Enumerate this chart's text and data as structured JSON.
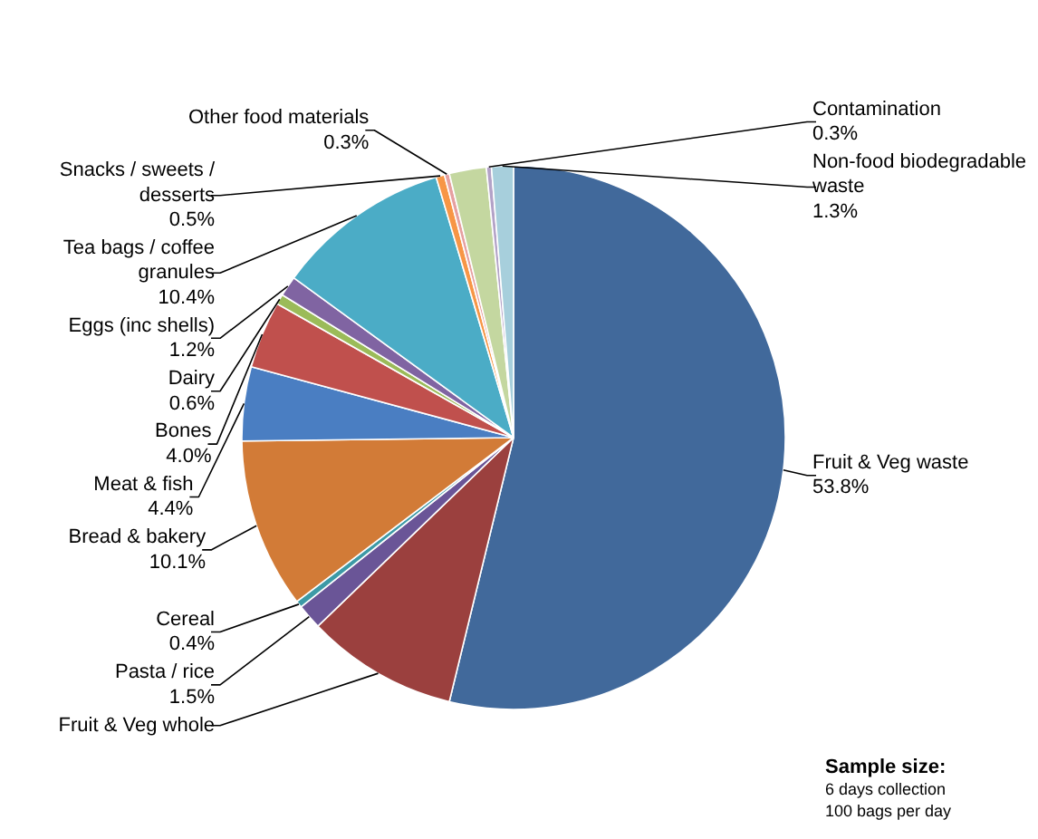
{
  "chart_data": {
    "type": "pie",
    "categories": [
      "Fruit & Veg waste",
      "Fruit & Veg whole",
      "Pasta / rice",
      "Cereal",
      "Bread & bakery",
      "Meat & fish",
      "Bones",
      "Dairy",
      "Eggs (inc shells)",
      "Tea bags / coffee\ngranules",
      "Snacks / sweets /\ndesserts",
      "Other food materials",
      null,
      "Contamination",
      "Non-food biodegradable\nwaste"
    ],
    "values": [
      53.8,
      9.0,
      1.5,
      0.4,
      10.1,
      4.4,
      4.0,
      0.6,
      1.2,
      10.4,
      0.5,
      0.3,
      2.2,
      0.3,
      1.3
    ],
    "value_labels": [
      "53.8%",
      null,
      "1.5%",
      "0.4%",
      "10.1%",
      "4.4%",
      "4.0%",
      "0.6%",
      "1.2%",
      "10.4%",
      "0.5%",
      "0.3%",
      null,
      "0.3%",
      "1.3%"
    ],
    "colors": [
      "#41699b",
      "#9b403e",
      "#6a5597",
      "#3d9aa6",
      "#d27b37",
      "#4a7ec2",
      "#c0504d",
      "#9bbb59",
      "#8064a2",
      "#4bacc6",
      "#f79646",
      "#e6a0a0",
      "#c4d7a0",
      "#b3a2c7",
      "#a7cfdc"
    ],
    "annotations": [
      "Sample size:",
      "6 days collection",
      "100 bags per day"
    ]
  }
}
